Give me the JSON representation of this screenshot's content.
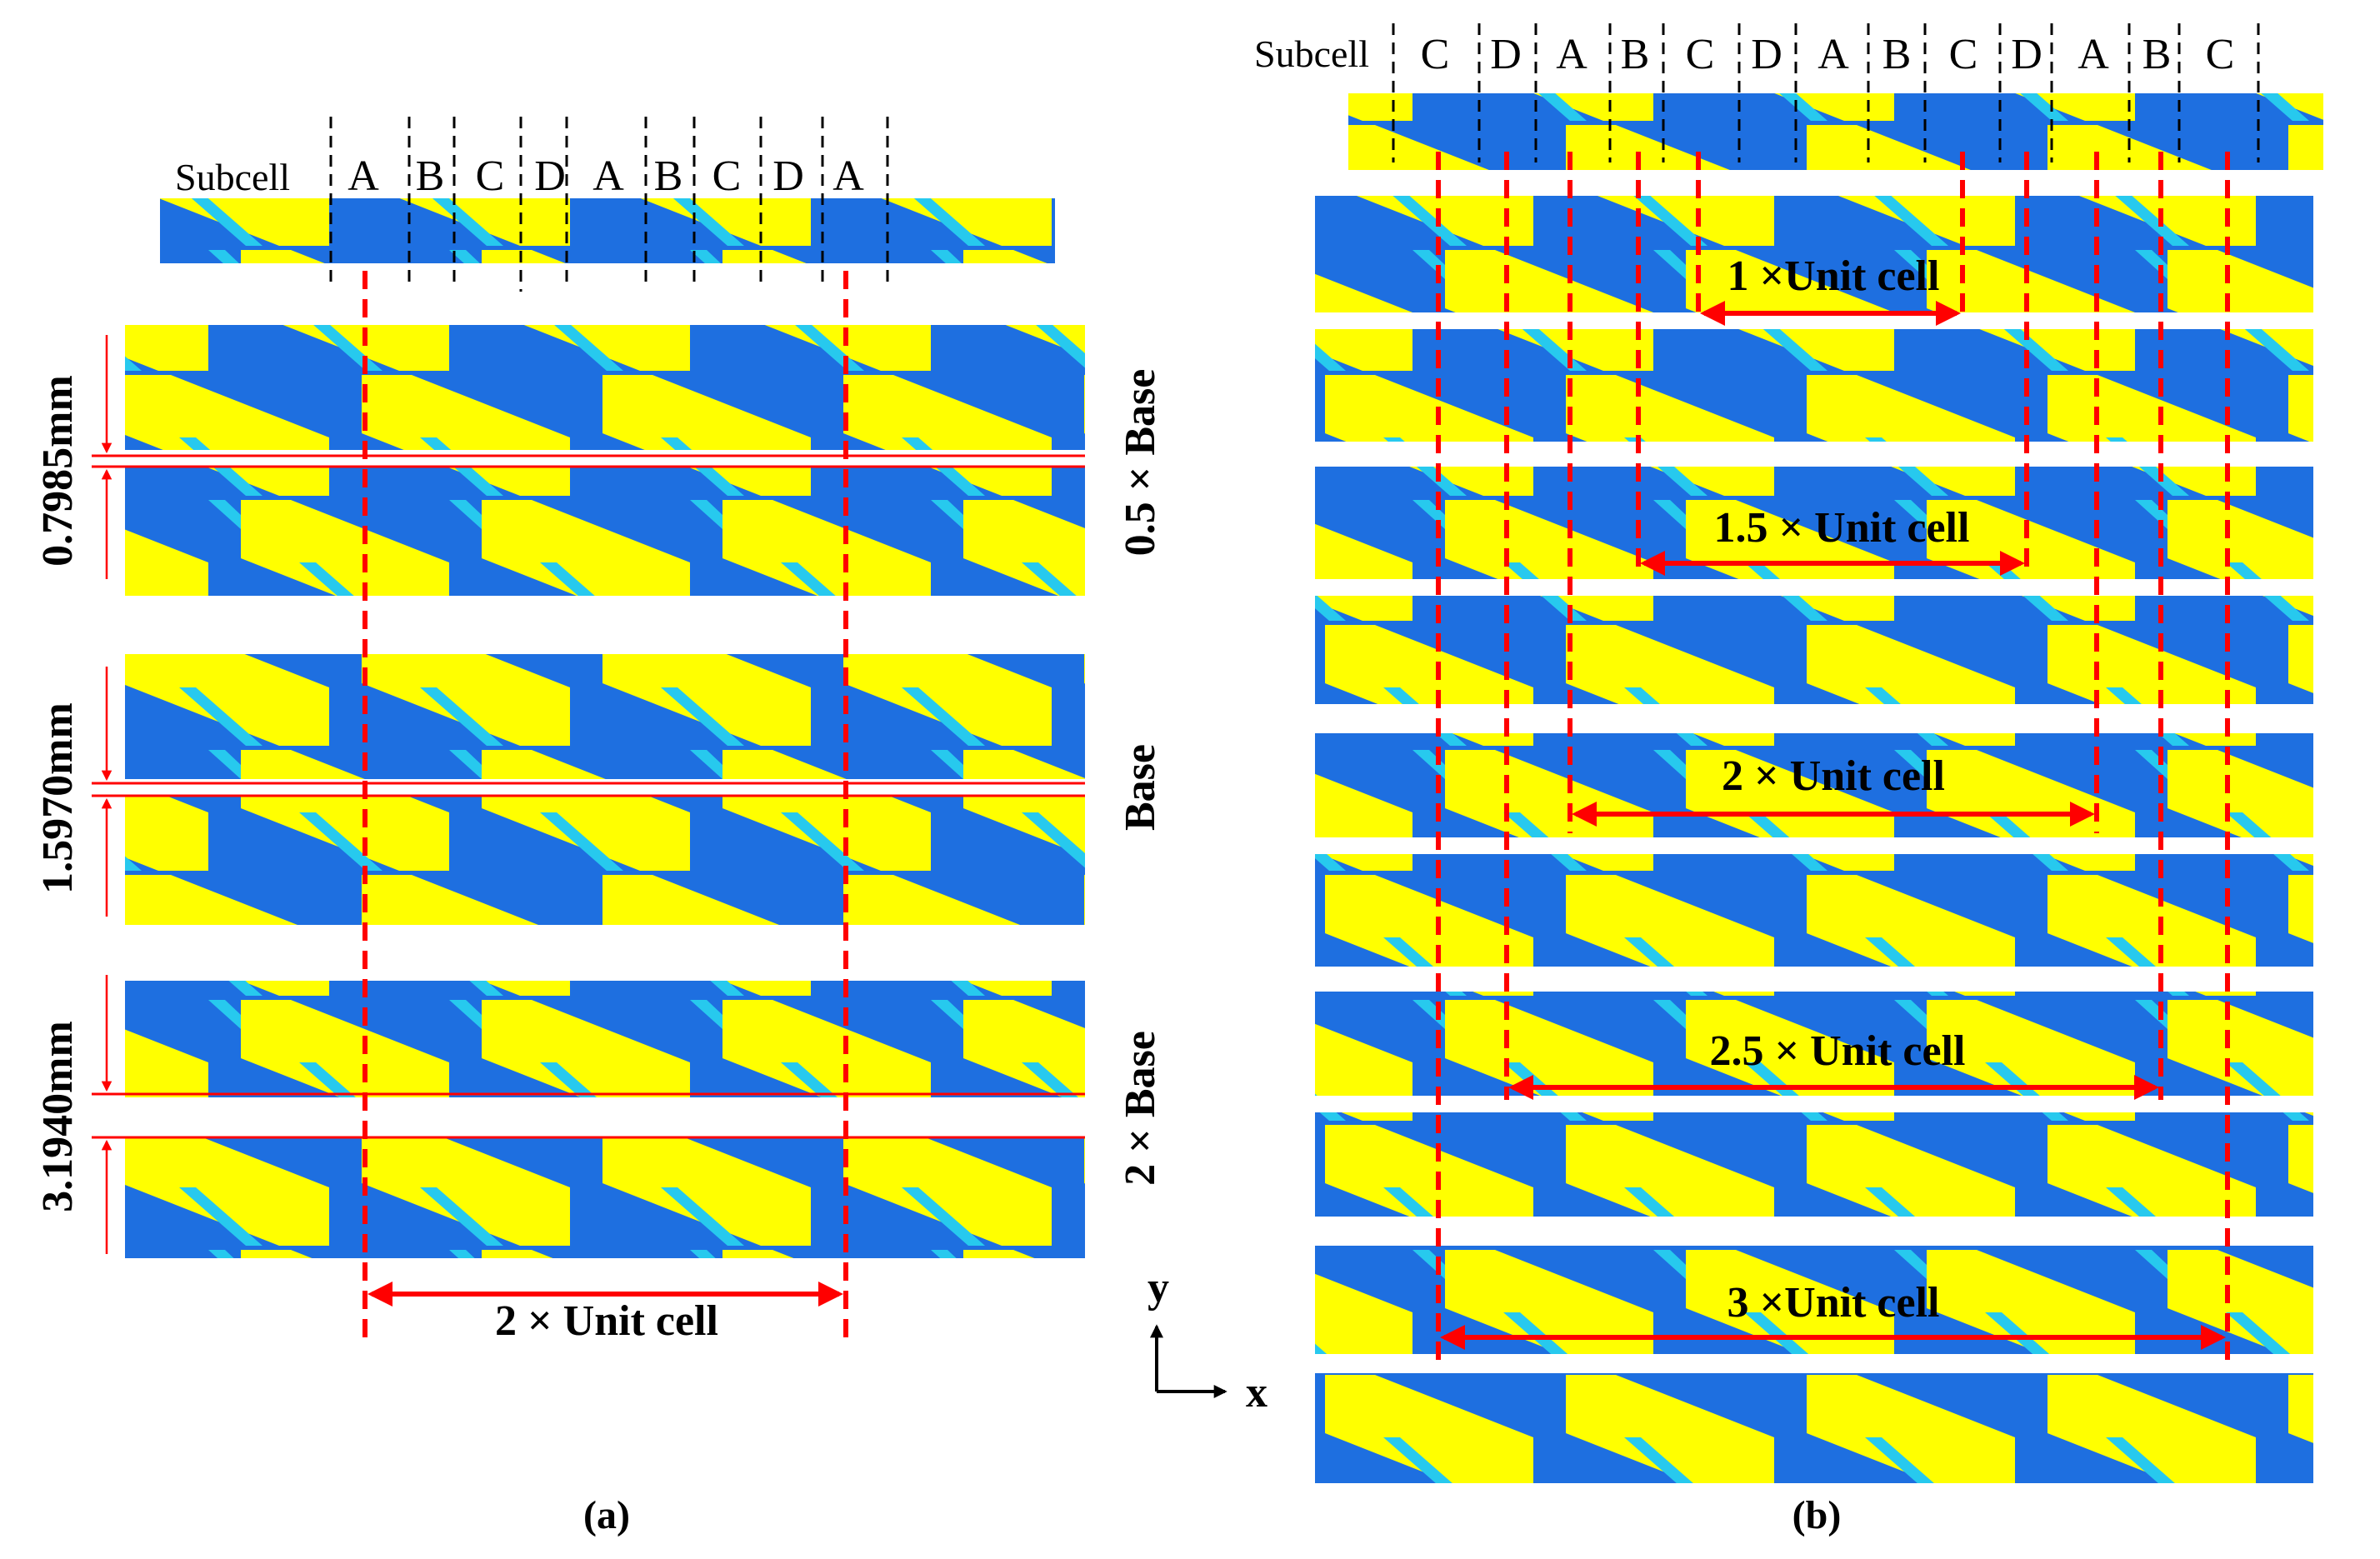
{
  "colors": {
    "yellow": "#FFFF00",
    "blue": "#1E6FE0",
    "cyan": "#27C9EE",
    "red": "#FF0000",
    "black": "#000000"
  },
  "panel_a": {
    "subcell_label": "Subcell",
    "subcells": [
      "A",
      "B",
      "C",
      "D",
      "A",
      "B",
      "C",
      "D",
      "A"
    ],
    "gap_labels": [
      "0.7985mm",
      "1.5970mm",
      "3.1940mm"
    ],
    "side_labels": [
      "0.5 × Base",
      "Base",
      "2 × Base"
    ],
    "span_label": "2 × Unit cell",
    "caption": "(a)"
  },
  "panel_b": {
    "subcell_label": "Subcell",
    "subcells": [
      "C",
      "D",
      "A",
      "B",
      "C",
      "D",
      "A",
      "B",
      "C",
      "D",
      "A",
      "B",
      "C"
    ],
    "span_labels": [
      "1 ×Unit cell",
      "1.5 × Unit cell",
      "2 × Unit cell",
      "2.5 × Unit cell",
      "3 ×Unit cell"
    ],
    "caption": "(b)"
  },
  "axes": {
    "y": "y",
    "x": "x"
  }
}
